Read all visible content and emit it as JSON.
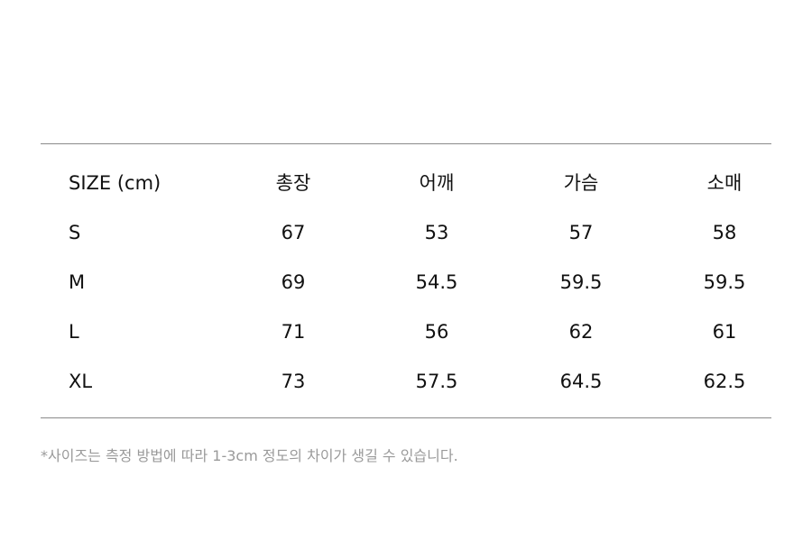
{
  "table": {
    "headers": [
      "SIZE (cm)",
      "총장",
      "어깨",
      "가슴",
      "소매"
    ],
    "rows": [
      [
        "S",
        "67",
        "53",
        "57",
        "58"
      ],
      [
        "M",
        "69",
        "54.5",
        "59.5",
        "59.5"
      ],
      [
        "L",
        "71",
        "56",
        "62",
        "61"
      ],
      [
        "XL",
        "73",
        "57.5",
        "64.5",
        "62.5"
      ]
    ]
  },
  "note": "*사이즈는 측정 방법에 따라 1-3cm 정도의 차이가 생길 수 있습니다."
}
